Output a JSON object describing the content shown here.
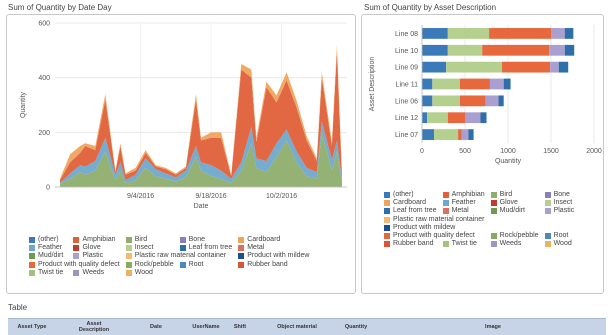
{
  "page": {
    "left_title": "Sum of Quantity by Date Day",
    "right_title": "Sum of Quantity by Asset Description",
    "table_title": "Table"
  },
  "table": {
    "columns": [
      "Asset Type",
      "Asset Description",
      "Date",
      "UserName",
      "Shift",
      "Object material",
      "Quantity",
      "Image"
    ]
  },
  "colors": {
    "(other)": "#3b7ab8",
    "Amphibian": "#e0603a",
    "Bird": "#8fae6e",
    "Bone": "#8b7fb8",
    "Cardboard": "#f0a35a",
    "Feather": "#6fa8cc",
    "Glove": "#c23b2b",
    "Insect": "#b5cf8f",
    "Leaf from tree": "#2f6fa8",
    "Metal": "#d97060",
    "Mud/dirt": "#6f9a52",
    "Plastic": "#a99fd0",
    "Plastic raw material container": "#f3b872",
    "Product with mildew": "#1f4f8a",
    "Product with quality defect": "#e8683e",
    "Rock/pebble": "#8aaa62",
    "Root": "#4a8ac4",
    "Rubber band": "#d8553a",
    "Twist tie": "#a4c27e",
    "Weeds": "#9e94c8",
    "Wood": "#f0b060"
  },
  "chart_data": [
    {
      "type": "area",
      "title": "Sum of Quantity by Date Day",
      "xlabel": "Date",
      "ylabel": "Quantity",
      "ylim": [
        0,
        600
      ],
      "yticks": [
        0,
        200,
        400,
        600
      ],
      "xlim": [
        "2016-08-18",
        "2016-10-15"
      ],
      "xticks": [
        {
          "date": "2016-09-04",
          "label": "9/4/2016"
        },
        {
          "date": "2016-09-18",
          "label": "9/18/2016"
        },
        {
          "date": "2016-10-02",
          "label": "10/2/2016"
        }
      ],
      "grid": true,
      "legend_position": "bottom",
      "x": [
        "2016-08-19",
        "2016-08-21",
        "2016-08-23",
        "2016-08-24",
        "2016-08-26",
        "2016-08-28",
        "2016-08-30",
        "2016-08-31",
        "2016-09-01",
        "2016-09-03",
        "2016-09-05",
        "2016-09-07",
        "2016-09-09",
        "2016-09-11",
        "2016-09-13",
        "2016-09-15",
        "2016-09-16",
        "2016-09-18",
        "2016-09-20",
        "2016-09-22",
        "2016-09-24",
        "2016-09-26",
        "2016-09-27",
        "2016-09-29",
        "2016-10-01",
        "2016-10-03",
        "2016-10-05",
        "2016-10-07",
        "2016-10-09",
        "2016-10-10",
        "2016-10-12",
        "2016-10-13",
        "2016-10-14"
      ],
      "series": [
        {
          "name": "Bird",
          "values": [
            10,
            30,
            55,
            45,
            60,
            130,
            25,
            60,
            15,
            25,
            70,
            40,
            30,
            20,
            35,
            110,
            60,
            40,
            30,
            15,
            60,
            160,
            70,
            55,
            110,
            170,
            90,
            40,
            30,
            200,
            60,
            130,
            20
          ]
        },
        {
          "name": "Feather",
          "values": [
            5,
            20,
            25,
            30,
            35,
            50,
            20,
            30,
            10,
            20,
            35,
            25,
            20,
            15,
            25,
            40,
            30,
            40,
            30,
            15,
            30,
            60,
            35,
            40,
            50,
            40,
            40,
            30,
            25,
            40,
            40,
            40,
            10
          ]
        },
        {
          "name": "Amphibian",
          "values": [
            10,
            40,
            45,
            75,
            40,
            140,
            10,
            60,
            20,
            15,
            20,
            10,
            15,
            10,
            10,
            170,
            80,
            100,
            120,
            10,
            340,
            180,
            60,
            270,
            150,
            180,
            160,
            100,
            40,
            160,
            50,
            330,
            10
          ]
        },
        {
          "name": "Cardboard",
          "values": [
            5,
            30,
            25,
            10,
            15,
            20,
            5,
            10,
            5,
            10,
            10,
            5,
            5,
            5,
            5,
            20,
            10,
            20,
            20,
            5,
            20,
            30,
            15,
            20,
            25,
            30,
            25,
            15,
            10,
            20,
            15,
            20,
            5
          ]
        }
      ]
    },
    {
      "type": "bar",
      "orientation": "horizontal",
      "stacked": true,
      "title": "Sum of Quantity by Asset Description",
      "xlabel": "Quantity",
      "ylabel": "Asset Description",
      "xlim": [
        0,
        2000
      ],
      "xticks": [
        0,
        500,
        1000,
        1500,
        2000
      ],
      "legend_position": "bottom",
      "categories": [
        "Line 08",
        "Line 10",
        "Line 09",
        "Line 11",
        "Line 06",
        "Line 12",
        "Line 07"
      ],
      "series": [
        {
          "name": "(other)",
          "values": [
            300,
            300,
            280,
            120,
            120,
            60,
            140
          ]
        },
        {
          "name": "Insect",
          "values": [
            480,
            400,
            650,
            320,
            320,
            240,
            280
          ]
        },
        {
          "name": "Product with quality defect",
          "values": [
            720,
            780,
            560,
            350,
            300,
            200,
            40
          ]
        },
        {
          "name": "Plastic",
          "values": [
            160,
            180,
            100,
            160,
            150,
            180,
            80
          ]
        },
        {
          "name": "Leaf from tree",
          "values": [
            100,
            110,
            110,
            80,
            60,
            70,
            60
          ]
        }
      ]
    }
  ],
  "legend": {
    "left_items": [
      "(other)",
      "Amphibian",
      "Bird",
      "Bone",
      "Cardboard",
      "Feather",
      "Glove",
      "Insect",
      "Leaf from tree",
      "Metal",
      "Mud/dirt",
      "Plastic",
      "Plastic raw material container",
      "Product with mildew",
      "Product with quality defect",
      "Rock/pebble",
      "Root",
      "Rubber band",
      "Twist tie",
      "Weeds",
      "Wood"
    ],
    "right_items": [
      "(other)",
      "Amphibian",
      "Bird",
      "Bone",
      "Cardboard",
      "Feather",
      "Glove",
      "Insect",
      "Leaf from tree",
      "Metal",
      "Mud/dirt",
      "Plastic",
      "Plastic raw material container",
      "Product with mildew",
      "Product with quality defect",
      "Rock/pebble",
      "Root",
      "Rubber band",
      "Twist tie",
      "Weeds",
      "Wood"
    ]
  }
}
